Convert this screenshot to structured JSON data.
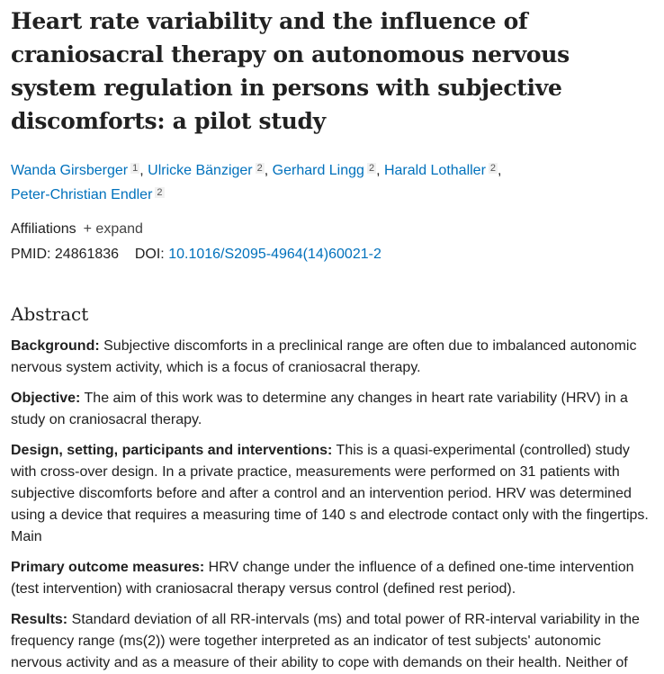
{
  "title": "Heart rate variability and the influence of craniosacral therapy on autonomous nervous system regulation in persons with subjective discomforts: a pilot study",
  "authors": [
    {
      "name": "Wanda Girsberger",
      "aff": "1"
    },
    {
      "name": "Ulricke Bänziger",
      "aff": "2"
    },
    {
      "name": "Gerhard Lingg",
      "aff": "2"
    },
    {
      "name": "Harald Lothaller",
      "aff": "2"
    },
    {
      "name": "Peter-Christian Endler",
      "aff": "2"
    }
  ],
  "affiliations_label": "Affiliations",
  "expand_label": "+ expand",
  "pmid_label": "PMID: 24861836",
  "doi_label": "DOI:",
  "doi": "10.1016/S2095-4964(14)60021-2",
  "abstract_heading": "Abstract",
  "sections": [
    {
      "label": "Background:",
      "text": " Subjective discomforts in a preclinical range are often due to imbalanced autonomic nervous system activity, which is a focus of craniosacral therapy."
    },
    {
      "label": "Objective:",
      "text": " The aim of this work was to determine any changes in heart rate variability (HRV) in a study on craniosacral therapy."
    },
    {
      "label": "Design, setting, participants and interventions:",
      "text": " This is a quasi-experimental (controlled) study with cross-over design. In a private practice, measurements were performed on 31 patients with subjective discomforts before and after a control and an intervention period. HRV was determined using a device that requires a measuring time of 140 s and electrode contact only with the fingertips. Main"
    },
    {
      "label": "Primary outcome measures:",
      "text": " HRV change under the influence of a defined one-time intervention (test intervention) with craniosacral therapy versus control (defined rest period)."
    },
    {
      "label": "Results:",
      "text": " Standard deviation of all RR-intervals (ms) and total power of RR-interval variability in the frequency range (ms(2)) were together interpreted as an indicator of test subjects' autonomic nervous activity and as a measure of their ability to cope with demands on their health. Neither of"
    }
  ]
}
